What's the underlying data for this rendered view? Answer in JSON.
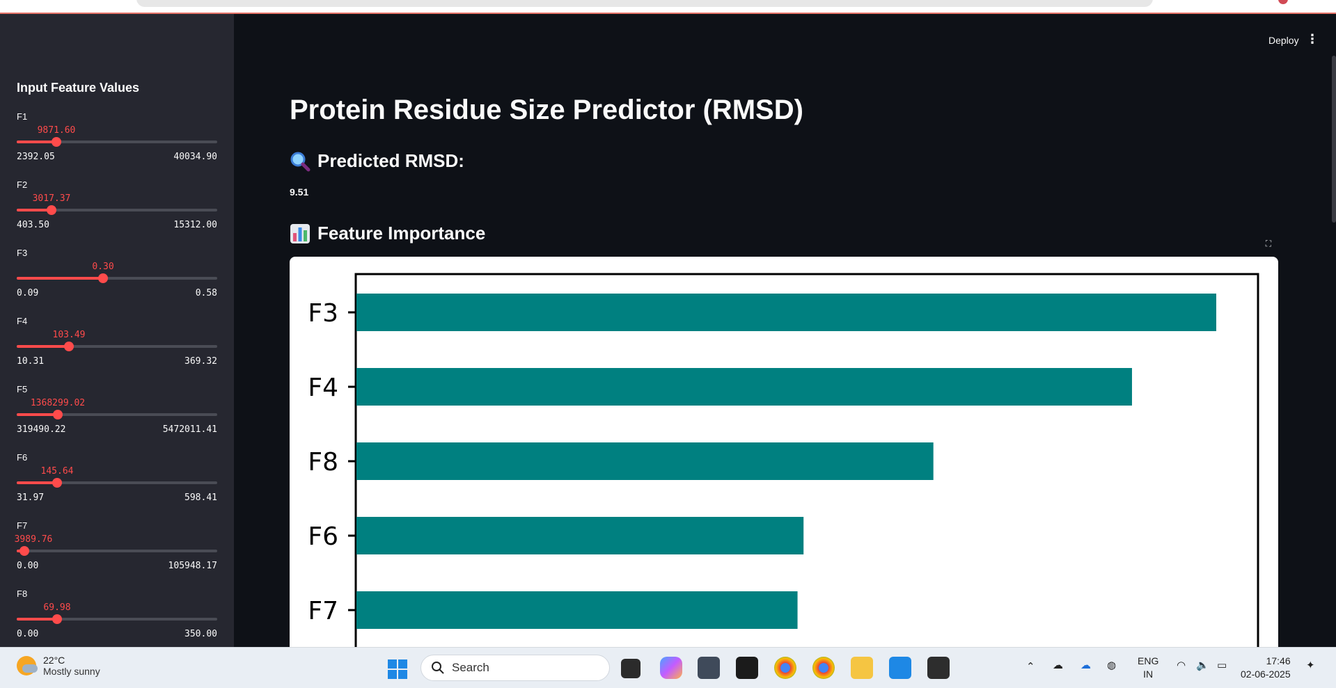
{
  "app": {
    "deploy_label": "Deploy",
    "menu_glyph": "⋮"
  },
  "sidebar": {
    "title": "Input Feature Values",
    "sliders": [
      {
        "label": "F1",
        "value": "9871.60",
        "min": "2392.05",
        "max": "40034.90",
        "fraction": 0.199
      },
      {
        "label": "F2",
        "value": "3017.37",
        "min": "403.50",
        "max": "15312.00",
        "fraction": 0.175
      },
      {
        "label": "F3",
        "value": "0.30",
        "min": "0.09",
        "max": "0.58",
        "fraction": 0.429
      },
      {
        "label": "F4",
        "value": "103.49",
        "min": "10.31",
        "max": "369.32",
        "fraction": 0.26
      },
      {
        "label": "F5",
        "value": "1368299.02",
        "min": "319490.22",
        "max": "5472011.41",
        "fraction": 0.204
      },
      {
        "label": "F6",
        "value": "145.64",
        "min": "31.97",
        "max": "598.41",
        "fraction": 0.201
      },
      {
        "label": "F7",
        "value": "3989.76",
        "min": "0.00",
        "max": "105948.17",
        "fraction": 0.038
      },
      {
        "label": "F8",
        "value": "69.98",
        "min": "0.00",
        "max": "350.00",
        "fraction": 0.2
      }
    ]
  },
  "main": {
    "title": "Protein Residue Size Predictor (RMSD)",
    "predicted_heading": "Predicted RMSD:",
    "predicted_value": "9.51",
    "importance_heading": "Feature Importance",
    "fullscreen_glyph": "⛶"
  },
  "chart_data": {
    "type": "bar",
    "orientation": "horizontal",
    "categories": [
      "F3",
      "F4",
      "F8",
      "F6",
      "F7"
    ],
    "values": [
      1.0,
      0.902,
      0.671,
      0.52,
      0.513
    ],
    "bar_color": "#008080",
    "title": "",
    "xlabel": "",
    "ylabel": "",
    "grid": false
  },
  "taskbar": {
    "temperature": "22°C",
    "condition": "Mostly sunny",
    "search_placeholder": "Search",
    "lang_top": "ENG",
    "lang_bottom": "IN",
    "time": "17:46",
    "date": "02-06-2025"
  },
  "colors": {
    "accent": "#ff4b4b",
    "sidebar_bg": "#262730",
    "main_bg": "#0e1117",
    "bar": "#008080"
  }
}
